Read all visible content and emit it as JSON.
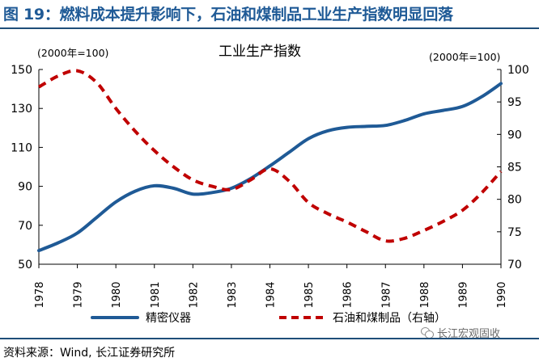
{
  "figure": {
    "title": "图 19：燃料成本提升影响下，石油和煤制品工业生产指数明显回落",
    "source": "资料来源：Wind, 长江证券研究所",
    "watermark": "长江宏观固收"
  },
  "colors": {
    "series_1": "#1f5a96",
    "series_2": "#c00000",
    "header": "#1f5a96",
    "rule": "#1f4e79"
  },
  "chart_data": {
    "type": "line",
    "title": "工业生产指数",
    "left_axis_unit": "(2000年=100)",
    "right_axis_unit": "(2000年=100)",
    "x": [
      "1978",
      "1979",
      "1980",
      "1981",
      "1982",
      "1983",
      "1984",
      "1985",
      "1986",
      "1987",
      "1988",
      "1989",
      "1990"
    ],
    "x_range": [
      1978,
      1990
    ],
    "ylim_left": [
      50,
      150
    ],
    "yticks_left": [
      50,
      70,
      90,
      110,
      130,
      150
    ],
    "ylim_right": [
      70,
      100
    ],
    "yticks_right": [
      70,
      75,
      80,
      85,
      90,
      95,
      100
    ],
    "grid": false,
    "legend_position": "bottom",
    "series": [
      {
        "name": "精密仪器",
        "axis": "left",
        "style": "solid",
        "color": "#1f5a96",
        "points": [
          [
            1978,
            57
          ],
          [
            1978.5,
            61
          ],
          [
            1979,
            66
          ],
          [
            1979.5,
            74
          ],
          [
            1980,
            82
          ],
          [
            1980.5,
            87.5
          ],
          [
            1981,
            90.3
          ],
          [
            1981.5,
            89
          ],
          [
            1982,
            86
          ],
          [
            1982.5,
            86.8
          ],
          [
            1983,
            89
          ],
          [
            1983.5,
            94
          ],
          [
            1984,
            100.5
          ],
          [
            1984.5,
            107.5
          ],
          [
            1985,
            114.5
          ],
          [
            1985.5,
            118.5
          ],
          [
            1986,
            120.3
          ],
          [
            1986.5,
            120.8
          ],
          [
            1987,
            121.3
          ],
          [
            1987.5,
            123.8
          ],
          [
            1988,
            127.2
          ],
          [
            1988.5,
            129
          ],
          [
            1989,
            131
          ],
          [
            1989.5,
            136
          ],
          [
            1990,
            142.8
          ]
        ]
      },
      {
        "name": "石油和煤制品（右轴）",
        "axis": "right",
        "style": "dashed",
        "color": "#c00000",
        "points": [
          [
            1978,
            97.3
          ],
          [
            1978.5,
            99
          ],
          [
            1979,
            99.8
          ],
          [
            1979.5,
            98
          ],
          [
            1980,
            94
          ],
          [
            1980.5,
            90.5
          ],
          [
            1981,
            87.5
          ],
          [
            1981.5,
            85
          ],
          [
            1982,
            83
          ],
          [
            1982.5,
            82
          ],
          [
            1983,
            81.5
          ],
          [
            1983.5,
            83
          ],
          [
            1984,
            84.7
          ],
          [
            1984.5,
            82.8
          ],
          [
            1985,
            79.5
          ],
          [
            1985.5,
            77.8
          ],
          [
            1986,
            76.5
          ],
          [
            1986.5,
            75
          ],
          [
            1987,
            73.6
          ],
          [
            1987.5,
            74
          ],
          [
            1988,
            75.2
          ],
          [
            1988.5,
            76.6
          ],
          [
            1989,
            78.3
          ],
          [
            1989.5,
            81
          ],
          [
            1990,
            84.3
          ]
        ]
      }
    ]
  }
}
